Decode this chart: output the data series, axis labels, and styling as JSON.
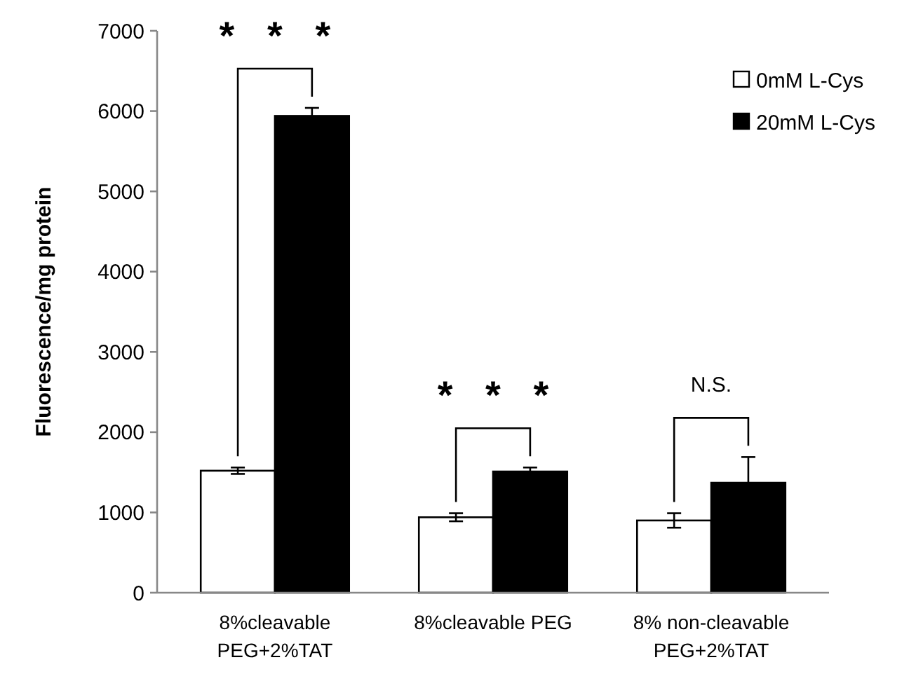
{
  "chart_data": {
    "type": "bar",
    "ylabel": "Fluorescence/mg protein",
    "categories": [
      "8%cleavable\nPEG+2%TAT",
      "8%cleavable PEG",
      "8% non-cleavable\nPEG+2%TAT"
    ],
    "series": [
      {
        "name": "0mM L-Cys",
        "color": "#ffffff",
        "values": [
          1520,
          940,
          900
        ],
        "errors": [
          40,
          50,
          90
        ]
      },
      {
        "name": "20mM L-Cys",
        "color": "#000000",
        "values": [
          5940,
          1510,
          1370
        ],
        "errors": [
          100,
          50,
          320
        ]
      }
    ],
    "ylim": [
      0,
      7000
    ],
    "yticks": [
      0,
      1000,
      2000,
      3000,
      4000,
      5000,
      6000,
      7000
    ],
    "grid": false,
    "legend": "top right",
    "annotations": [
      "* * *",
      "* * *",
      "N.S."
    ]
  }
}
